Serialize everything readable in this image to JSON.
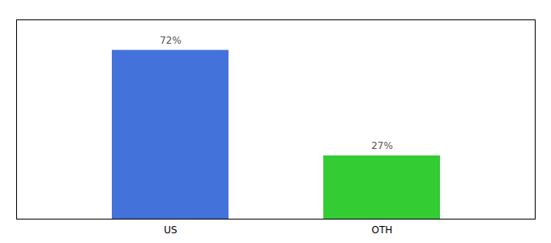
{
  "chart_data": {
    "type": "bar",
    "categories": [
      "US",
      "OTH"
    ],
    "values": [
      72,
      27
    ],
    "value_labels": [
      "72%",
      "27%"
    ],
    "colors": [
      "#4472db",
      "#33cc33"
    ],
    "ylim": [
      0,
      85
    ],
    "tick_labels": "x",
    "data_labels": true
  }
}
